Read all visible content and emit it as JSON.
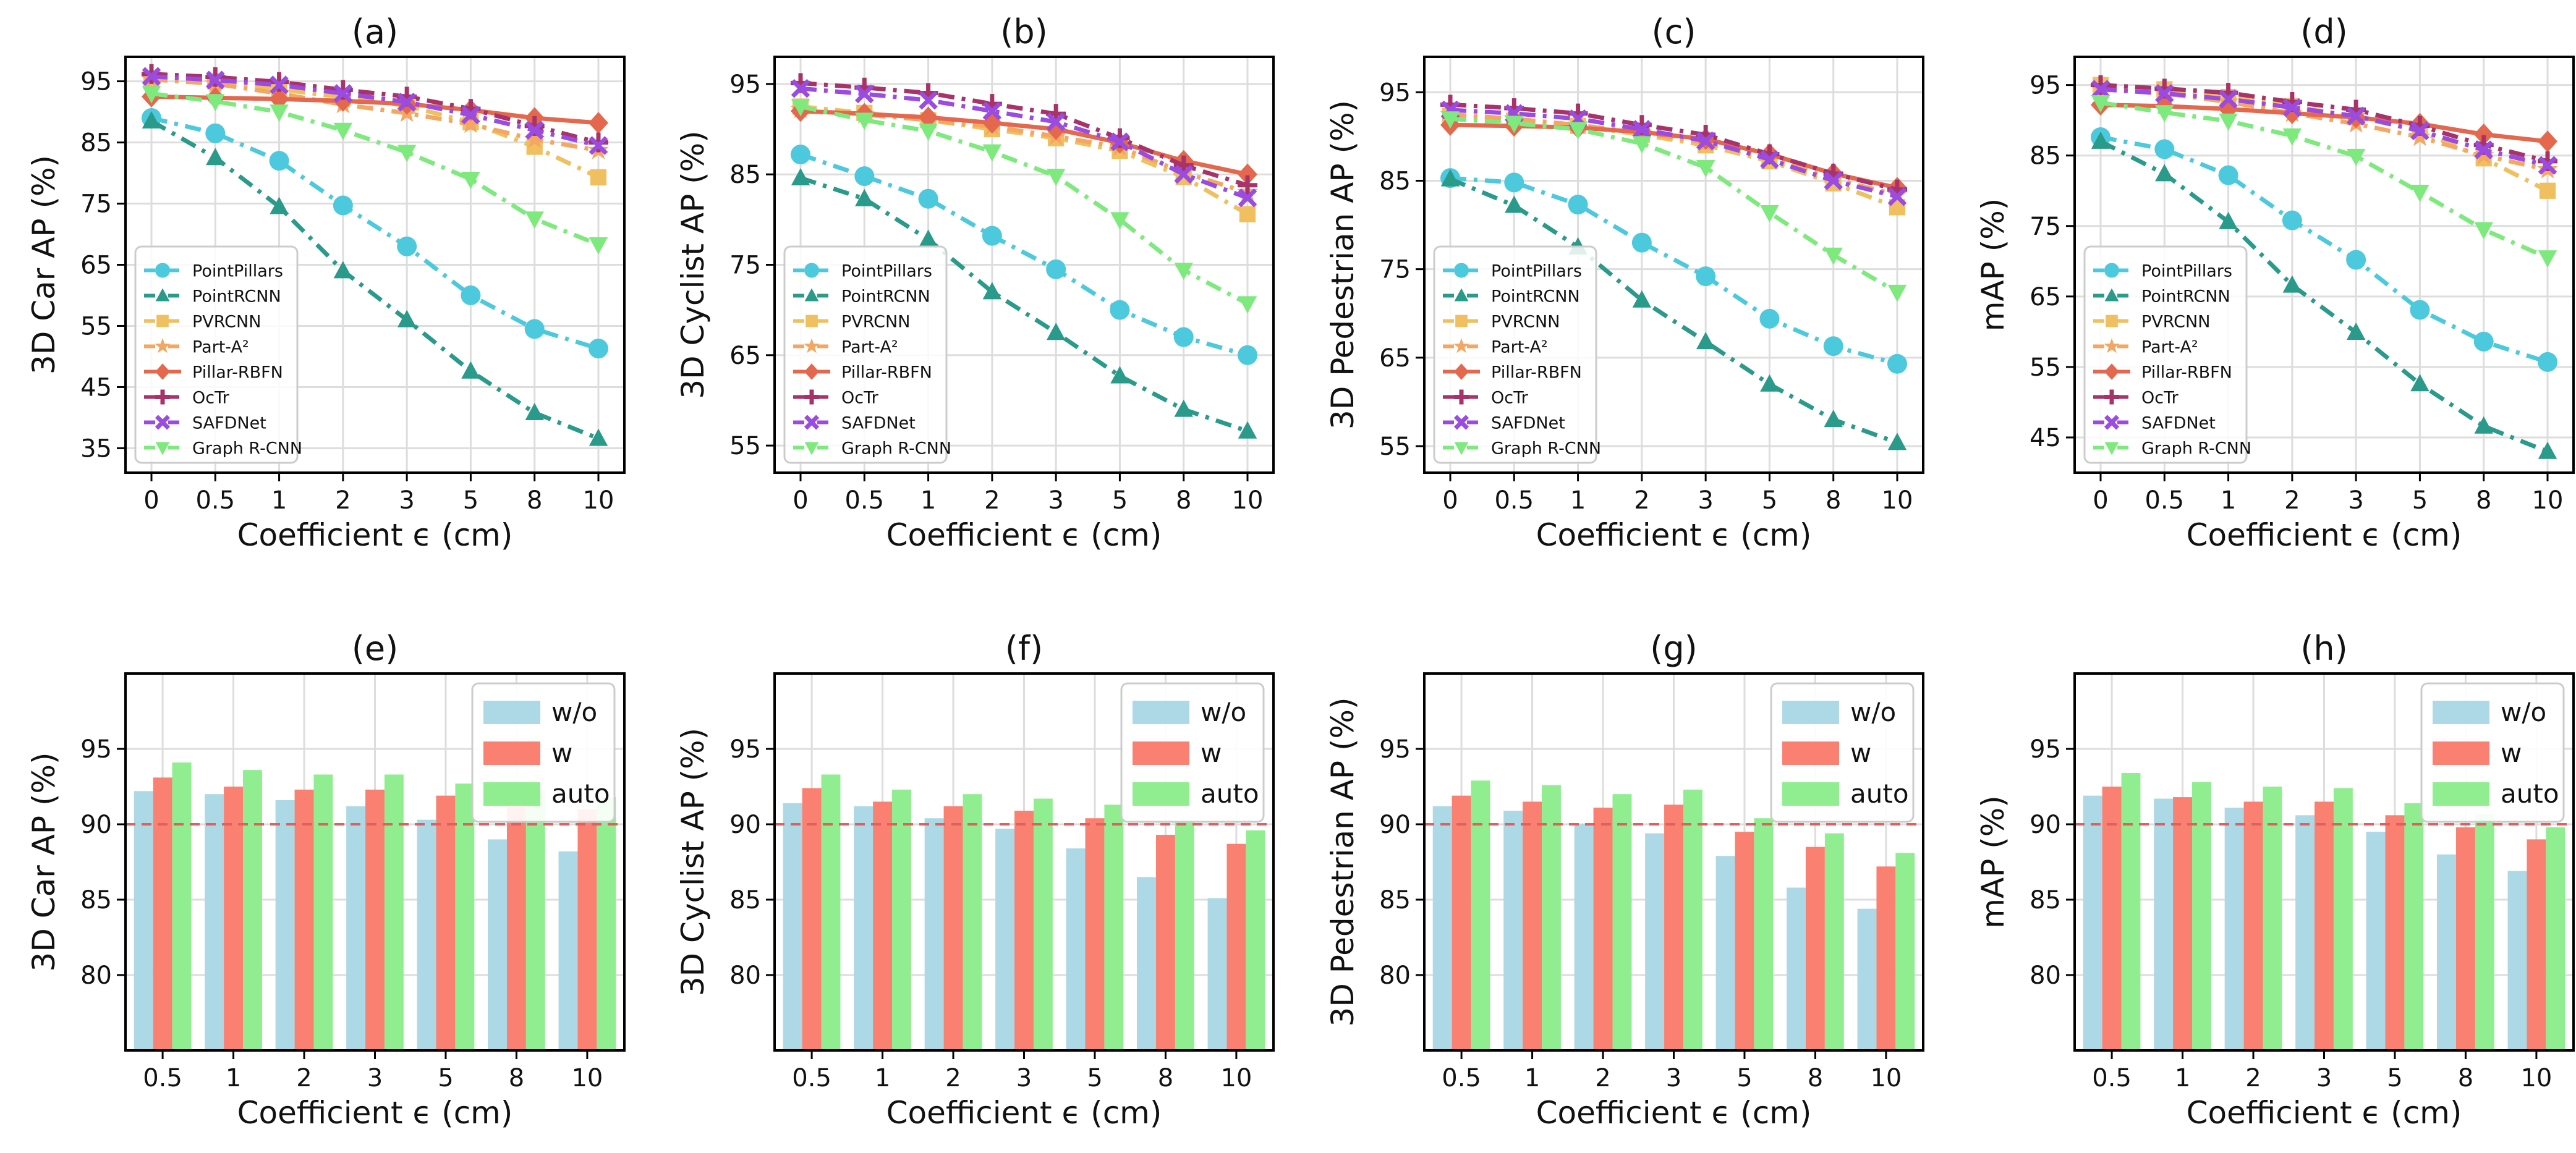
{
  "chart_data": [
    {
      "panel": "(a)",
      "type": "line",
      "title": "(a)",
      "xlabel": "Coefficient ϵ (cm)",
      "ylabel": "3D Car AP (%)",
      "categories": [
        "0",
        "0.5",
        "1",
        "2",
        "3",
        "5",
        "8",
        "10"
      ],
      "ylim": [
        31,
        99
      ],
      "yticks": [
        35,
        45,
        55,
        65,
        75,
        85,
        95
      ],
      "grid": true,
      "legend": "lower-left",
      "series": [
        {
          "name": "PointPillars",
          "values": [
            89.0,
            86.5,
            82.0,
            74.7,
            68.0,
            60.0,
            54.5,
            51.3
          ]
        },
        {
          "name": "PointRCNN",
          "values": [
            88.5,
            82.5,
            74.5,
            64.0,
            56.0,
            47.6,
            40.8,
            36.6
          ]
        },
        {
          "name": "PVRCNN",
          "values": [
            95.5,
            95.0,
            93.7,
            92.4,
            91.0,
            88.3,
            84.3,
            79.3
          ]
        },
        {
          "name": "Part-A²",
          "values": [
            95.3,
            94.6,
            93.0,
            91.2,
            89.8,
            88.0,
            85.5,
            83.7
          ]
        },
        {
          "name": "Pillar-RBFN",
          "values": [
            92.5,
            92.3,
            92.1,
            91.8,
            91.3,
            90.3,
            89.0,
            88.2
          ]
        },
        {
          "name": "OcTr",
          "values": [
            96.2,
            95.7,
            94.9,
            93.6,
            92.5,
            90.5,
            87.7,
            85.0
          ]
        },
        {
          "name": "SAFDNet",
          "values": [
            95.8,
            95.2,
            94.4,
            93.0,
            91.6,
            89.5,
            87.0,
            84.5
          ]
        },
        {
          "name": "Graph R-CNN",
          "values": [
            93.0,
            91.7,
            90.0,
            87.0,
            83.4,
            79.0,
            72.5,
            68.3
          ]
        }
      ]
    },
    {
      "panel": "(b)",
      "type": "line",
      "title": "(b)",
      "xlabel": "Coefficient ϵ (cm)",
      "ylabel": "3D Cyclist AP (%)",
      "categories": [
        "0",
        "0.5",
        "1",
        "2",
        "3",
        "5",
        "8",
        "10"
      ],
      "ylim": [
        52,
        98
      ],
      "yticks": [
        55,
        65,
        75,
        85,
        95
      ],
      "grid": true,
      "legend": "lower-left",
      "series": [
        {
          "name": "PointPillars",
          "values": [
            87.2,
            84.8,
            82.3,
            78.2,
            74.5,
            70.0,
            67.0,
            65.0
          ]
        },
        {
          "name": "PointRCNN",
          "values": [
            84.6,
            82.3,
            77.8,
            72.0,
            67.5,
            62.7,
            59.0,
            56.6
          ]
        },
        {
          "name": "PVRCNN",
          "values": [
            92.5,
            91.8,
            91.0,
            90.0,
            89.0,
            87.6,
            84.7,
            80.6
          ]
        },
        {
          "name": "Part-A²",
          "values": [
            92.2,
            91.6,
            91.0,
            90.3,
            89.2,
            88.0,
            85.2,
            83.0
          ]
        },
        {
          "name": "Pillar-RBFN",
          "values": [
            92.0,
            91.7,
            91.3,
            90.7,
            90.0,
            88.5,
            86.5,
            85.0
          ]
        },
        {
          "name": "OcTr",
          "values": [
            95.1,
            94.6,
            94.0,
            92.8,
            91.7,
            89.0,
            86.0,
            83.8
          ]
        },
        {
          "name": "SAFDNet",
          "values": [
            94.5,
            93.9,
            93.2,
            92.0,
            90.8,
            88.6,
            85.0,
            82.4
          ]
        },
        {
          "name": "Graph R-CNN",
          "values": [
            92.5,
            91.0,
            89.8,
            87.5,
            84.8,
            80.0,
            74.4,
            70.7
          ]
        }
      ]
    },
    {
      "panel": "(c)",
      "type": "line",
      "title": "(c)",
      "xlabel": "Coefficient ϵ (cm)",
      "ylabel": "3D Pedestrian AP (%)",
      "categories": [
        "0",
        "0.5",
        "1",
        "2",
        "3",
        "5",
        "8",
        "10"
      ],
      "ylim": [
        52,
        99
      ],
      "yticks": [
        55,
        65,
        75,
        85,
        95
      ],
      "grid": true,
      "legend": "lower-left",
      "series": [
        {
          "name": "PointPillars",
          "values": [
            85.3,
            84.8,
            82.3,
            78.0,
            74.2,
            69.4,
            66.3,
            64.3
          ]
        },
        {
          "name": "PointRCNN",
          "values": [
            85.2,
            82.2,
            77.5,
            71.5,
            66.8,
            62.0,
            58.0,
            55.4
          ]
        },
        {
          "name": "PVRCNN",
          "values": [
            92.3,
            91.8,
            91.2,
            90.2,
            89.0,
            87.2,
            84.7,
            82.0
          ]
        },
        {
          "name": "Part-A²",
          "values": [
            92.5,
            92.0,
            91.3,
            90.4,
            89.3,
            87.6,
            85.2,
            83.4
          ]
        },
        {
          "name": "Pillar-RBFN",
          "values": [
            91.3,
            91.2,
            91.0,
            90.5,
            89.7,
            88.0,
            85.8,
            84.2
          ]
        },
        {
          "name": "OcTr",
          "values": [
            93.6,
            93.2,
            92.6,
            91.3,
            90.2,
            88.0,
            85.8,
            84.0
          ]
        },
        {
          "name": "SAFDNet",
          "values": [
            93.0,
            92.6,
            92.0,
            90.8,
            89.5,
            87.4,
            85.0,
            83.2
          ]
        },
        {
          "name": "Graph R-CNN",
          "values": [
            92.0,
            91.5,
            90.8,
            89.2,
            86.5,
            81.4,
            76.6,
            72.4
          ]
        }
      ]
    },
    {
      "panel": "(d)",
      "type": "line",
      "title": "(d)",
      "xlabel": "Coefficient ϵ (cm)",
      "ylabel": "mAP (%)",
      "categories": [
        "0",
        "0.5",
        "1",
        "2",
        "3",
        "5",
        "8",
        "10"
      ],
      "ylim": [
        40,
        99
      ],
      "yticks": [
        45,
        55,
        65,
        75,
        85,
        95
      ],
      "grid": true,
      "legend": "lower-left",
      "series": [
        {
          "name": "PointPillars",
          "values": [
            87.6,
            85.9,
            82.2,
            75.8,
            70.2,
            63.1,
            58.6,
            55.7
          ]
        },
        {
          "name": "PointRCNN",
          "values": [
            87.0,
            82.4,
            75.6,
            66.6,
            59.9,
            52.6,
            46.6,
            43.0
          ]
        },
        {
          "name": "PVRCNN",
          "values": [
            95.0,
            94.4,
            93.3,
            92.0,
            90.5,
            88.5,
            84.6,
            80.0
          ]
        },
        {
          "name": "Part-A²",
          "values": [
            94.5,
            93.8,
            92.6,
            91.0,
            89.5,
            87.6,
            85.0,
            83.0
          ]
        },
        {
          "name": "Pillar-RBFN",
          "values": [
            92.2,
            92.0,
            91.6,
            91.0,
            90.4,
            89.5,
            88.0,
            87.0
          ]
        },
        {
          "name": "OcTr",
          "values": [
            95.0,
            94.5,
            93.9,
            92.6,
            91.5,
            89.2,
            86.5,
            84.2
          ]
        },
        {
          "name": "SAFDNet",
          "values": [
            94.4,
            93.8,
            93.0,
            91.8,
            90.6,
            88.5,
            85.8,
            83.6
          ]
        },
        {
          "name": "Graph R-CNN",
          "values": [
            92.5,
            91.1,
            89.9,
            87.8,
            84.9,
            79.8,
            74.5,
            70.5
          ]
        }
      ]
    },
    {
      "panel": "(e)",
      "type": "bar",
      "title": "(e)",
      "xlabel": "Coefficient ϵ (cm)",
      "ylabel": "3D Car AP (%)",
      "categories": [
        "0.5",
        "1",
        "2",
        "3",
        "5",
        "8",
        "10"
      ],
      "ylim": [
        75,
        100
      ],
      "yticks": [
        80,
        85,
        90,
        95
      ],
      "reference_line": 90,
      "grid": true,
      "legend": "top-right",
      "series": [
        {
          "name": "w/o",
          "values": [
            92.2,
            92.0,
            91.6,
            91.2,
            90.3,
            89.0,
            88.2
          ]
        },
        {
          "name": "w",
          "values": [
            93.1,
            92.5,
            92.3,
            92.3,
            91.9,
            91.6,
            91.0
          ]
        },
        {
          "name": "auto",
          "values": [
            94.1,
            93.6,
            93.3,
            93.3,
            92.7,
            92.3,
            91.8
          ]
        }
      ]
    },
    {
      "panel": "(f)",
      "type": "bar",
      "title": "(f)",
      "xlabel": "Coefficient ϵ (cm)",
      "ylabel": "3D Cyclist AP (%)",
      "categories": [
        "0.5",
        "1",
        "2",
        "3",
        "5",
        "8",
        "10"
      ],
      "ylim": [
        75,
        100
      ],
      "yticks": [
        80,
        85,
        90,
        95
      ],
      "reference_line": 90,
      "grid": true,
      "legend": "top-right",
      "series": [
        {
          "name": "w/o",
          "values": [
            91.4,
            91.2,
            90.4,
            89.7,
            88.4,
            86.5,
            85.1
          ]
        },
        {
          "name": "w",
          "values": [
            92.4,
            91.5,
            91.2,
            90.9,
            90.4,
            89.3,
            88.7
          ]
        },
        {
          "name": "auto",
          "values": [
            93.3,
            92.3,
            92.0,
            91.7,
            91.3,
            90.2,
            89.6
          ]
        }
      ]
    },
    {
      "panel": "(g)",
      "type": "bar",
      "title": "(g)",
      "xlabel": "Coefficient ϵ (cm)",
      "ylabel": "3D Pedestrian AP (%)",
      "categories": [
        "0.5",
        "1",
        "2",
        "3",
        "5",
        "8",
        "10"
      ],
      "ylim": [
        75,
        100
      ],
      "yticks": [
        80,
        85,
        90,
        95
      ],
      "reference_line": 90,
      "grid": true,
      "legend": "top-right",
      "series": [
        {
          "name": "w/o",
          "values": [
            91.2,
            90.9,
            90.0,
            89.4,
            87.9,
            85.8,
            84.4
          ]
        },
        {
          "name": "w",
          "values": [
            91.9,
            91.5,
            91.1,
            91.3,
            89.5,
            88.5,
            87.2
          ]
        },
        {
          "name": "auto",
          "values": [
            92.9,
            92.6,
            92.0,
            92.3,
            90.4,
            89.4,
            88.1
          ]
        }
      ]
    },
    {
      "panel": "(h)",
      "type": "bar",
      "title": "(h)",
      "xlabel": "Coefficient ϵ (cm)",
      "ylabel": "mAP (%)",
      "categories": [
        "0.5",
        "1",
        "2",
        "3",
        "5",
        "8",
        "10"
      ],
      "ylim": [
        75,
        100
      ],
      "yticks": [
        80,
        85,
        90,
        95
      ],
      "reference_line": 90,
      "grid": true,
      "legend": "top-right",
      "series": [
        {
          "name": "w/o",
          "values": [
            91.9,
            91.7,
            91.1,
            90.6,
            89.5,
            88.0,
            86.9
          ]
        },
        {
          "name": "w",
          "values": [
            92.5,
            91.8,
            91.5,
            91.5,
            90.6,
            89.8,
            89.0
          ]
        },
        {
          "name": "auto",
          "values": [
            93.4,
            92.8,
            92.5,
            92.4,
            91.4,
            90.7,
            89.8
          ]
        }
      ]
    }
  ],
  "styles": {
    "line_series": [
      {
        "name": "PointPillars",
        "color": "#4cc9dd",
        "marker": "circle",
        "dash": "dashdot"
      },
      {
        "name": "PointRCNN",
        "color": "#2a9a8a",
        "marker": "triangle",
        "dash": "dashdot"
      },
      {
        "name": "PVRCNN",
        "color": "#f0c060",
        "marker": "square",
        "dash": "dashdot"
      },
      {
        "name": "Part-A²",
        "color": "#f4a762",
        "marker": "star",
        "dash": "dashdot"
      },
      {
        "name": "Pillar-RBFN",
        "color": "#e4684e",
        "marker": "diamond",
        "dash": "solid"
      },
      {
        "name": "OcTr",
        "color": "#a8336a",
        "marker": "plus",
        "dash": "dashdot"
      },
      {
        "name": "SAFDNet",
        "color": "#9a4be0",
        "marker": "x",
        "dash": "dashdot"
      },
      {
        "name": "Graph R-CNN",
        "color": "#7eea7e",
        "marker": "triangle-down",
        "dash": "dashdot"
      }
    ],
    "bar_series": [
      {
        "name": "w/o",
        "color": "#add8e6"
      },
      {
        "name": "w",
        "color": "#fa8072"
      },
      {
        "name": "auto",
        "color": "#90ee90"
      }
    ],
    "reference_line_color": "#e06060",
    "grid_color": "#dddddd",
    "axis_color": "#000000"
  }
}
